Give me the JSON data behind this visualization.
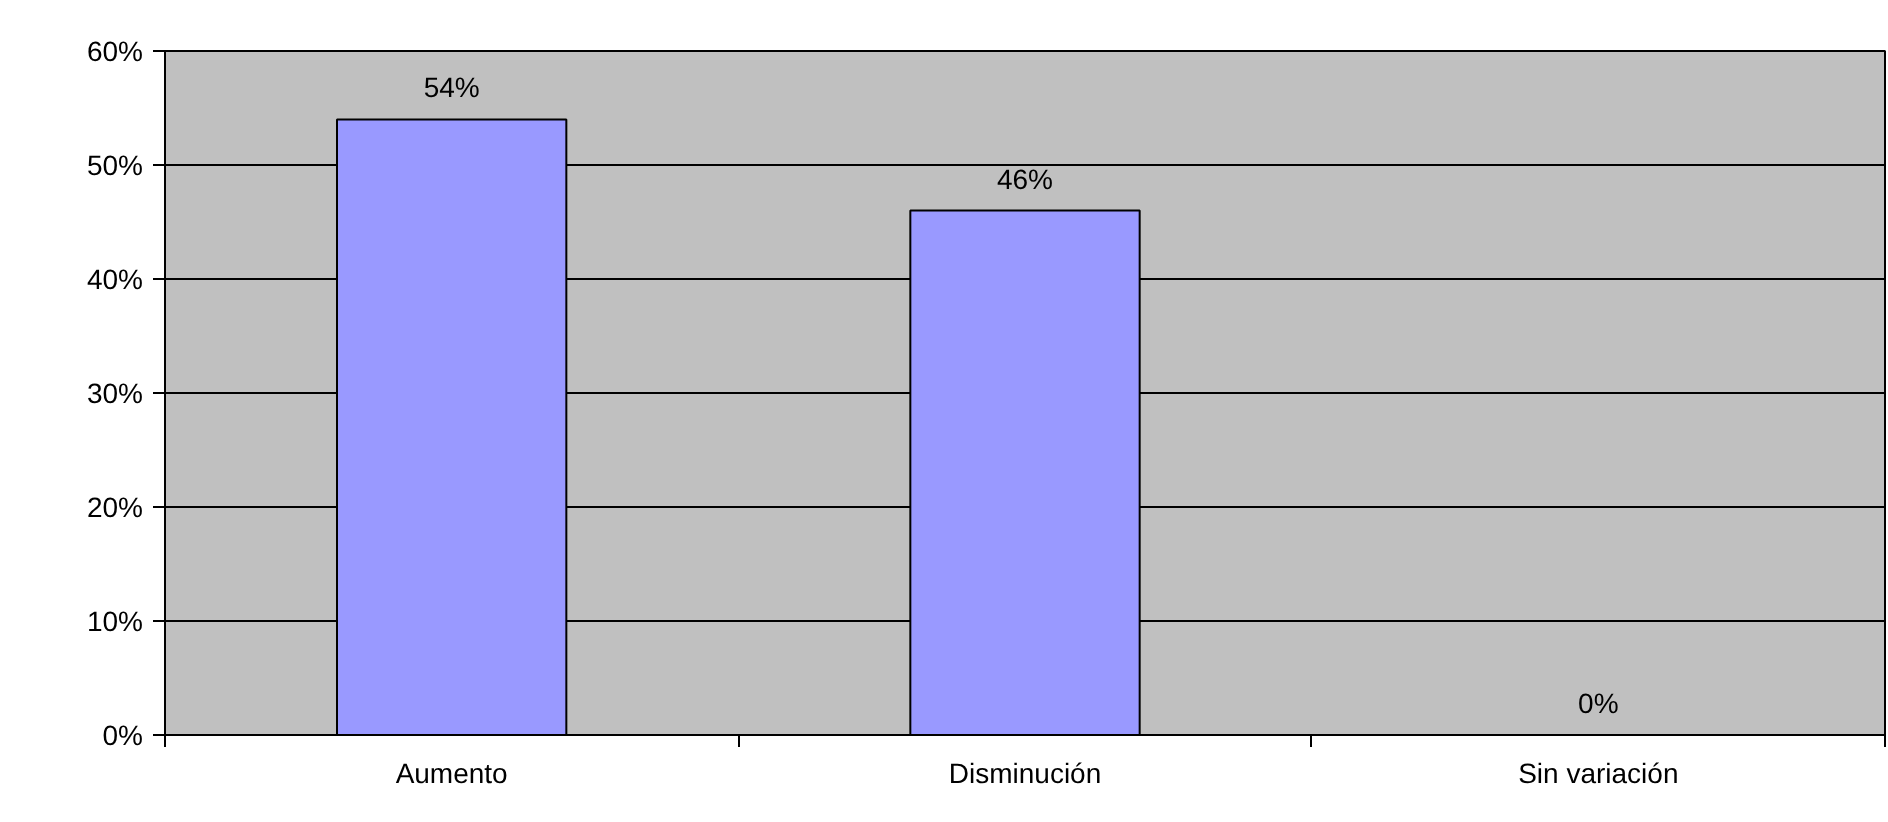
{
  "chart_data": {
    "type": "bar",
    "categories": [
      "Aumento",
      "Disminución",
      "Sin variación"
    ],
    "values": [
      54,
      46,
      0
    ],
    "value_labels": [
      "54%",
      "46%",
      "0%"
    ],
    "color": "#9999ff",
    "ylim": [
      0,
      60
    ],
    "yticks": [
      {
        "value": 0,
        "label": "0%"
      },
      {
        "value": 10,
        "label": "10%"
      },
      {
        "value": 20,
        "label": "20%"
      },
      {
        "value": 30,
        "label": "30%"
      },
      {
        "value": 40,
        "label": "40%"
      },
      {
        "value": 50,
        "label": "50%"
      },
      {
        "value": 60,
        "label": "60%"
      }
    ],
    "grid": "y"
  }
}
